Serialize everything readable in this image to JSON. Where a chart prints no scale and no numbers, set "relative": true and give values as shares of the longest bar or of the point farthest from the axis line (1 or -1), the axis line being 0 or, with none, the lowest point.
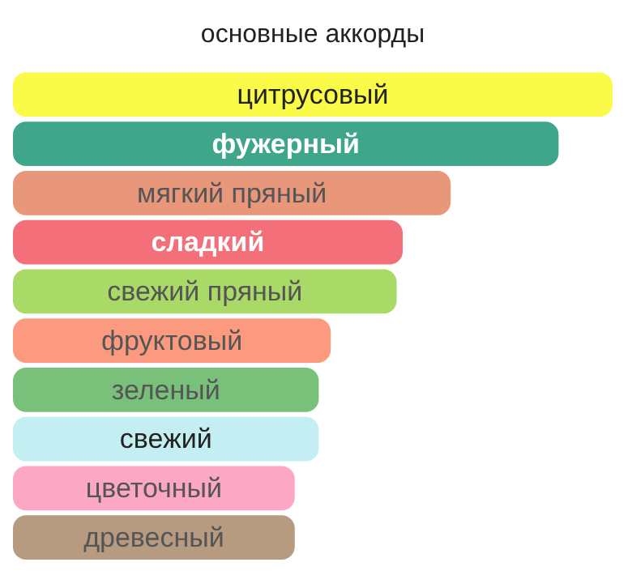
{
  "chart_data": {
    "type": "bar",
    "orientation": "horizontal",
    "relative": true,
    "title": "основные аккорды",
    "categories": [
      "цитрусовый",
      "фужерный",
      "мягкий пряный",
      "сладкий",
      "свежий пряный",
      "фруктовый",
      "зеленый",
      "свежий",
      "цветочный",
      "древесный"
    ],
    "values": [
      1,
      0.91,
      0.73,
      0.65,
      0.64,
      0.53,
      0.51,
      0.51,
      0.47,
      0.47
    ],
    "colors": [
      "#fafa48",
      "#3fa68c",
      "#e8977b",
      "#f3707a",
      "#a9d967",
      "#fc9a80",
      "#79c07b",
      "#c3eef2",
      "#fca7c4",
      "#b79b80"
    ],
    "legend": false
  }
}
